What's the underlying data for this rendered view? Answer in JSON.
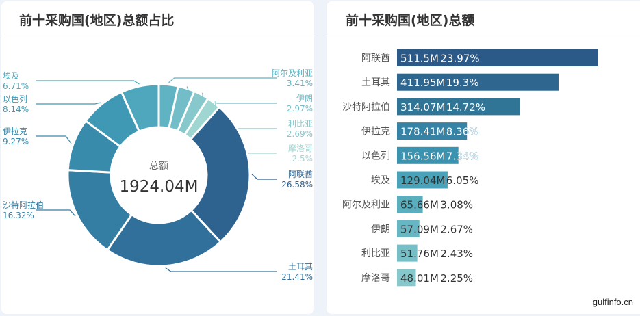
{
  "left_panel": {
    "title": "前十采购国(地区)总额占比"
  },
  "right_panel": {
    "title": "前十采购国(地区)总额"
  },
  "watermark": "gulfinfo.cn",
  "chart_data": [
    {
      "type": "pie",
      "variant": "donut",
      "title": "前十采购国(地区)总额占比",
      "center_label": "总额",
      "center_value": "1924.04M",
      "start": "top",
      "direction": "clockwise",
      "slices": [
        {
          "name": "阿尔及利亚",
          "percent": 3.41,
          "label": "3.41%",
          "color": "#60b3c2"
        },
        {
          "name": "伊朗",
          "percent": 2.97,
          "label": "2.97%",
          "color": "#72bdc8"
        },
        {
          "name": "利比亚",
          "percent": 2.69,
          "label": "2.69%",
          "color": "#86c8cc"
        },
        {
          "name": "摩洛哥",
          "percent": 2.5,
          "label": "2.5%",
          "color": "#a0d6d2"
        },
        {
          "name": "阿联酋",
          "percent": 26.58,
          "label": "26.58%",
          "color": "#2e628f"
        },
        {
          "name": "土耳其",
          "percent": 21.41,
          "label": "21.41%",
          "color": "#30709a"
        },
        {
          "name": "沙特阿拉伯",
          "percent": 16.32,
          "label": "16.32%",
          "color": "#347ea3"
        },
        {
          "name": "伊拉克",
          "percent": 9.27,
          "label": "9.27%",
          "color": "#388bab"
        },
        {
          "name": "以色列",
          "percent": 8.14,
          "label": "8.14%",
          "color": "#3f99b4"
        },
        {
          "name": "埃及",
          "percent": 6.71,
          "label": "6.71%",
          "color": "#4ea7bd"
        }
      ]
    },
    {
      "type": "bar",
      "orientation": "horizontal",
      "title": "前十采购国(地区)总额",
      "categories": [
        "阿联酋",
        "土耳其",
        "沙特阿拉伯",
        "伊拉克",
        "以色列",
        "埃及",
        "阿尔及利亚",
        "伊朗",
        "利比亚",
        "摩洛哥"
      ],
      "values": [
        511.5,
        411.95,
        314.07,
        178.41,
        156.56,
        129.04,
        65.66,
        57.09,
        51.76,
        48.01
      ],
      "value_labels": [
        "511.5M",
        "411.95M",
        "314.07M",
        "178.41M",
        "156.56M",
        "129.04M",
        "65.66M",
        "57.09M",
        "51.76M",
        "48.01M"
      ],
      "percent_labels": [
        "23.97%",
        "19.3%",
        "14.72%",
        "8.36%",
        "7.34%",
        "6.05%",
        "3.08%",
        "2.67%",
        "2.43%",
        "2.25%"
      ],
      "colors": [
        "#2c5a88",
        "#2e6690",
        "#317596",
        "#3783a6",
        "#3c93b0",
        "#4aa2b8",
        "#5aafbf",
        "#67b6c3",
        "#76bfc7",
        "#86c8cc"
      ],
      "xlim": [
        0,
        511.5
      ]
    }
  ]
}
